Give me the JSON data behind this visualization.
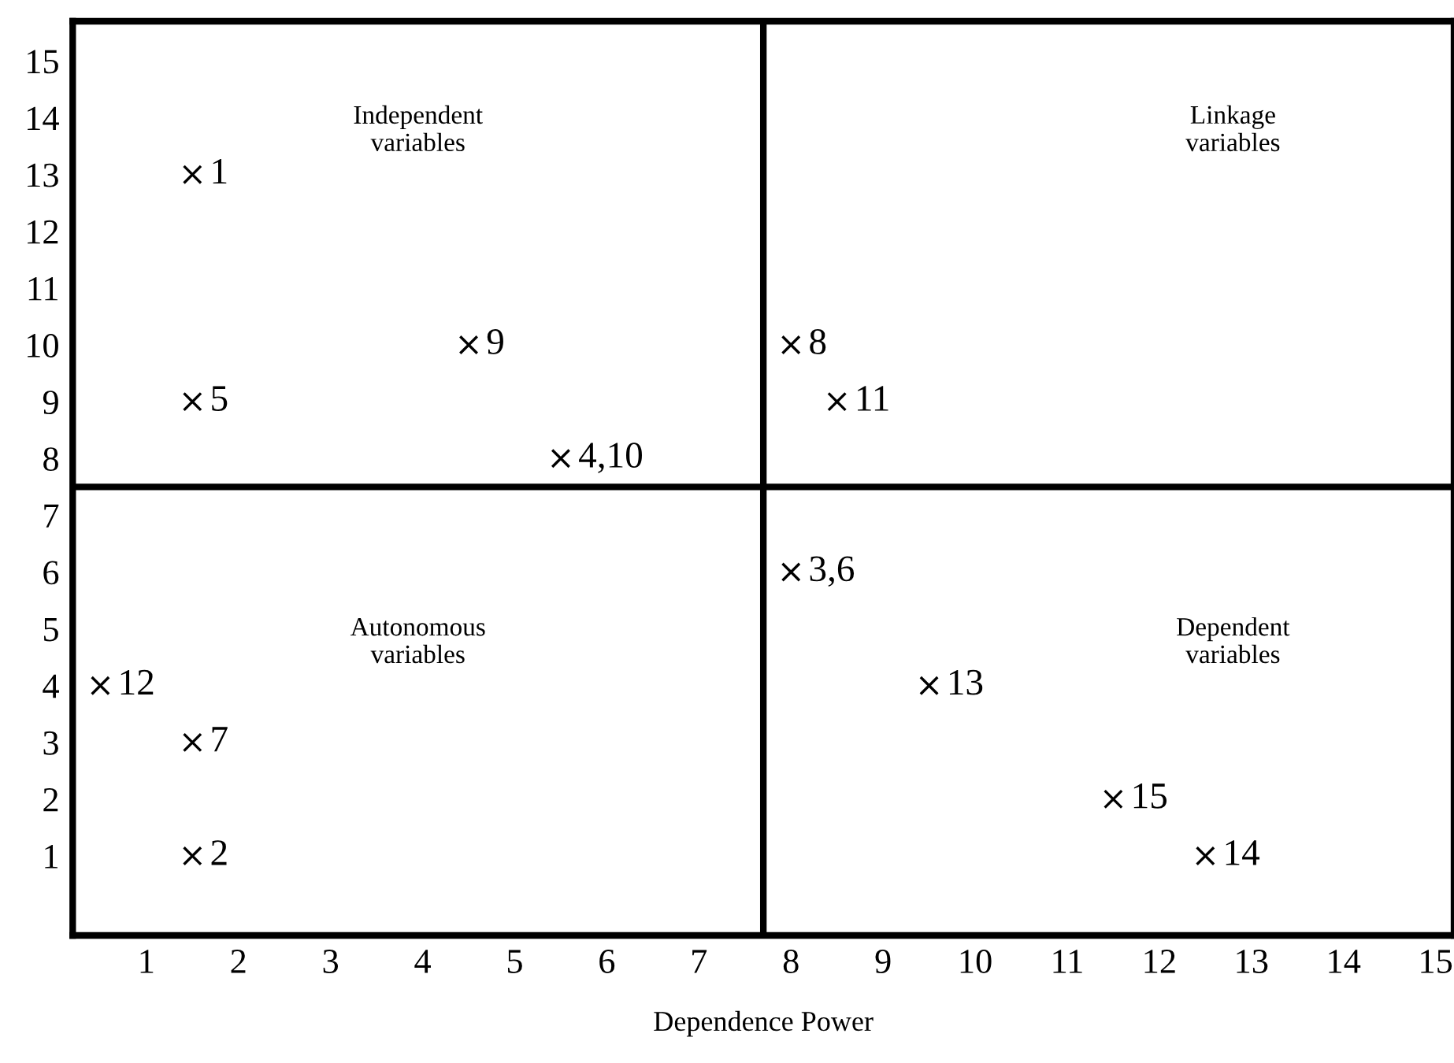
{
  "chart_data": {
    "type": "scatter",
    "xlabel": "Dependence Power",
    "x": [
      1.5,
      1.5,
      4.5,
      5.5,
      8,
      8.5,
      8,
      0.5,
      1.5,
      1.5,
      9.5,
      11.5,
      12.5
    ],
    "values": [
      13,
      9,
      10,
      8,
      10,
      9,
      6,
      4,
      3,
      1,
      4,
      2,
      1
    ],
    "color": "#000000",
    "marker": "cross",
    "xlim": [
      0.2,
      15.2
    ],
    "xticks": [
      1,
      2,
      3,
      4,
      5,
      6,
      7,
      8,
      9,
      10,
      11,
      12,
      13,
      14,
      15
    ],
    "ylim": [
      -0.4,
      15.7
    ],
    "yticks": [
      1,
      2,
      3,
      4,
      5,
      6,
      7,
      8,
      9,
      10,
      11,
      12,
      13,
      14,
      15
    ],
    "ref_lines": [
      {
        "axis": "x",
        "value": 7.7,
        "color": "#000000"
      },
      {
        "axis": "y",
        "value": 7.5,
        "color": "#000000"
      }
    ],
    "annotations": [
      "Independent\nvariables",
      "Linkage\nvariables",
      "Autonomous\nvariables",
      "Dependent\nvariables",
      {
        "text": "1",
        "x": 1.5,
        "y": 13
      },
      {
        "text": "5",
        "x": 1.5,
        "y": 9
      },
      {
        "text": "9",
        "x": 4.5,
        "y": 10
      },
      {
        "text": "4,10",
        "x": 5.5,
        "y": 8
      },
      {
        "text": "8",
        "x": 8,
        "y": 10
      },
      {
        "text": "11",
        "x": 8.5,
        "y": 9
      },
      {
        "text": "3,6",
        "x": 8,
        "y": 6
      },
      {
        "text": "12",
        "x": 0.5,
        "y": 4
      },
      {
        "text": "7",
        "x": 1.5,
        "y": 3
      },
      {
        "text": "2",
        "x": 1.5,
        "y": 1
      },
      {
        "text": "13",
        "x": 9.5,
        "y": 4
      },
      {
        "text": "15",
        "x": 11.5,
        "y": 2
      },
      {
        "text": "14",
        "x": 12.5,
        "y": 1
      }
    ],
    "grid": false,
    "legend": false
  }
}
